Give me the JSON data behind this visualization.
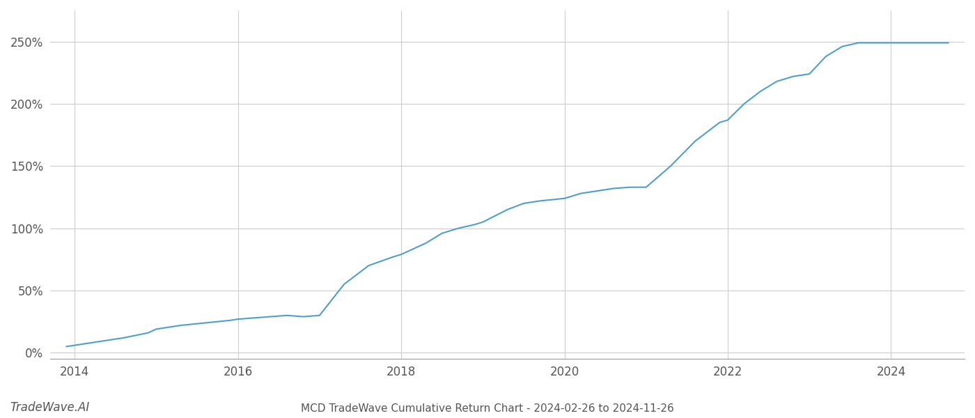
{
  "title": "MCD TradeWave Cumulative Return Chart - 2024-02-26 to 2024-11-26",
  "watermark": "TradeWave.AI",
  "line_color": "#4d9ecf",
  "background_color": "#ffffff",
  "grid_color": "#cccccc",
  "x_years": [
    2014,
    2016,
    2018,
    2020,
    2022,
    2024
  ],
  "xlim": [
    2013.7,
    2024.9
  ],
  "ylim": [
    -0.05,
    2.75
  ],
  "yticks": [
    0.0,
    0.5,
    1.0,
    1.5,
    2.0,
    2.5
  ],
  "ytick_labels": [
    "0%",
    "50%",
    "100%",
    "150%",
    "200%",
    "250%"
  ],
  "data_x": [
    2013.9,
    2014.1,
    2014.3,
    2014.6,
    2014.9,
    2015.0,
    2015.3,
    2015.6,
    2015.9,
    2016.0,
    2016.2,
    2016.4,
    2016.6,
    2016.8,
    2017.0,
    2017.3,
    2017.6,
    2017.9,
    2018.0,
    2018.3,
    2018.5,
    2018.7,
    2018.9,
    2019.0,
    2019.3,
    2019.5,
    2019.7,
    2020.0,
    2020.2,
    2020.4,
    2020.6,
    2020.8,
    2021.0,
    2021.3,
    2021.6,
    2021.9,
    2022.0,
    2022.2,
    2022.4,
    2022.6,
    2022.8,
    2023.0,
    2023.2,
    2023.4,
    2023.6,
    2023.8,
    2024.0,
    2024.2,
    2024.5,
    2024.7
  ],
  "data_y": [
    0.05,
    0.07,
    0.09,
    0.12,
    0.16,
    0.19,
    0.22,
    0.24,
    0.26,
    0.27,
    0.28,
    0.29,
    0.3,
    0.29,
    0.3,
    0.55,
    0.7,
    0.77,
    0.79,
    0.88,
    0.96,
    1.0,
    1.03,
    1.05,
    1.15,
    1.2,
    1.22,
    1.24,
    1.28,
    1.3,
    1.32,
    1.33,
    1.33,
    1.5,
    1.7,
    1.85,
    1.87,
    2.0,
    2.1,
    2.18,
    2.22,
    2.24,
    2.38,
    2.46,
    2.49,
    2.49,
    2.49,
    2.49,
    2.49,
    2.49
  ],
  "title_fontsize": 11,
  "tick_fontsize": 12,
  "watermark_fontsize": 12,
  "line_width": 1.5
}
